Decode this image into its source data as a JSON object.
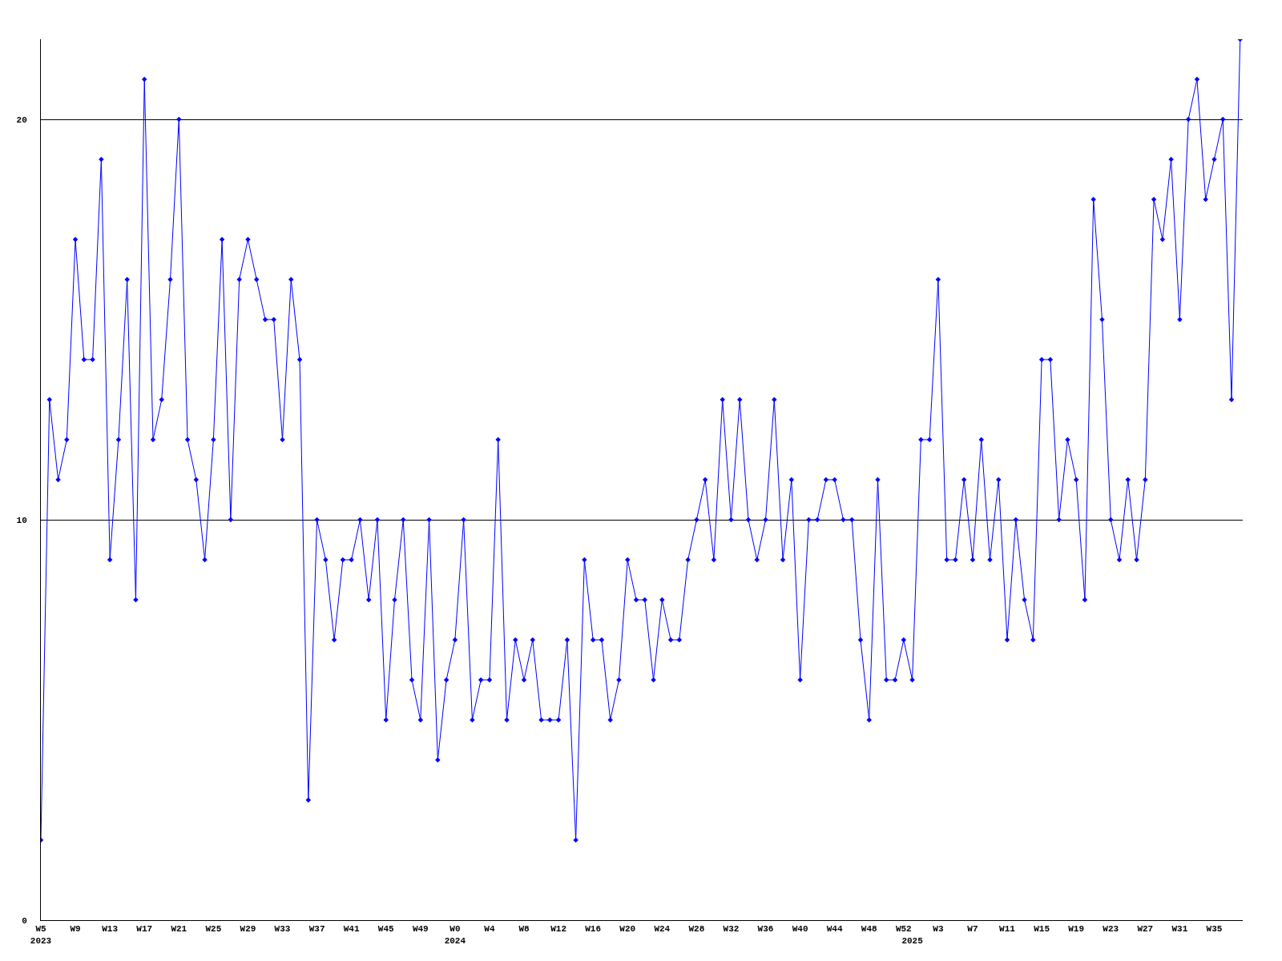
{
  "chart_data": {
    "type": "line",
    "categories": [
      "W5\n2023",
      null,
      null,
      null,
      "W9",
      null,
      null,
      null,
      "W13",
      null,
      null,
      null,
      "W17",
      null,
      null,
      null,
      "W21",
      null,
      null,
      null,
      "W25",
      null,
      null,
      null,
      "W29",
      null,
      null,
      null,
      "W33",
      null,
      null,
      null,
      "W37",
      null,
      null,
      null,
      "W41",
      null,
      null,
      null,
      "W45",
      null,
      null,
      null,
      "W49",
      null,
      null,
      null,
      "W0\n2024",
      null,
      null,
      null,
      "W4",
      null,
      null,
      null,
      "W8",
      null,
      null,
      null,
      "W12",
      null,
      null,
      null,
      "W16",
      null,
      null,
      null,
      "W20",
      null,
      null,
      null,
      "W24",
      null,
      null,
      null,
      "W28",
      null,
      null,
      null,
      "W32",
      null,
      null,
      null,
      "W36",
      null,
      null,
      null,
      "W40",
      null,
      null,
      null,
      "W44",
      null,
      null,
      null,
      "W48",
      null,
      null,
      null,
      "W52",
      "\n2025",
      null,
      null,
      "W3",
      null,
      null,
      null,
      "W7",
      null,
      null,
      null,
      "W11",
      null,
      null,
      null,
      "W15",
      null,
      null,
      null,
      "W19",
      null,
      null,
      null,
      "W23",
      null,
      null,
      null,
      "W27",
      null,
      null,
      null,
      "W31",
      null,
      null,
      null,
      "W35",
      null,
      null,
      null
    ],
    "series": [
      {
        "color": "#0000ff",
        "values": [
          2,
          13,
          11,
          12,
          17,
          14,
          14,
          19,
          9,
          12,
          16,
          8,
          21,
          12,
          13,
          16,
          20,
          12,
          11,
          9,
          12,
          17,
          10,
          16,
          17,
          16,
          15,
          15,
          12,
          16,
          14,
          3,
          10,
          9,
          7,
          9,
          9,
          10,
          8,
          10,
          5,
          8,
          10,
          6,
          5,
          10,
          4,
          6,
          7,
          10,
          5,
          6,
          6,
          12,
          5,
          7,
          6,
          7,
          5,
          5,
          5,
          7,
          2,
          9,
          7,
          7,
          5,
          6,
          9,
          8,
          8,
          6,
          8,
          7,
          7,
          9,
          10,
          11,
          9,
          13,
          10,
          13,
          10,
          9,
          10,
          13,
          9,
          11,
          6,
          10,
          10,
          11,
          11,
          10,
          10,
          7,
          5,
          11,
          6,
          6,
          7,
          6,
          12,
          12,
          16,
          9,
          9,
          11,
          9,
          12,
          9,
          11,
          7,
          10,
          8,
          7,
          14,
          14,
          10,
          12,
          11,
          8,
          18,
          15,
          10,
          9,
          11,
          9,
          11,
          18,
          17,
          19,
          15,
          20,
          21,
          18,
          19,
          20,
          13,
          22
        ]
      }
    ],
    "ylim": [
      0,
      22
    ],
    "yticks": [
      0,
      10,
      20
    ],
    "grid": "y",
    "marker": "diamond",
    "line_style": "solid"
  }
}
